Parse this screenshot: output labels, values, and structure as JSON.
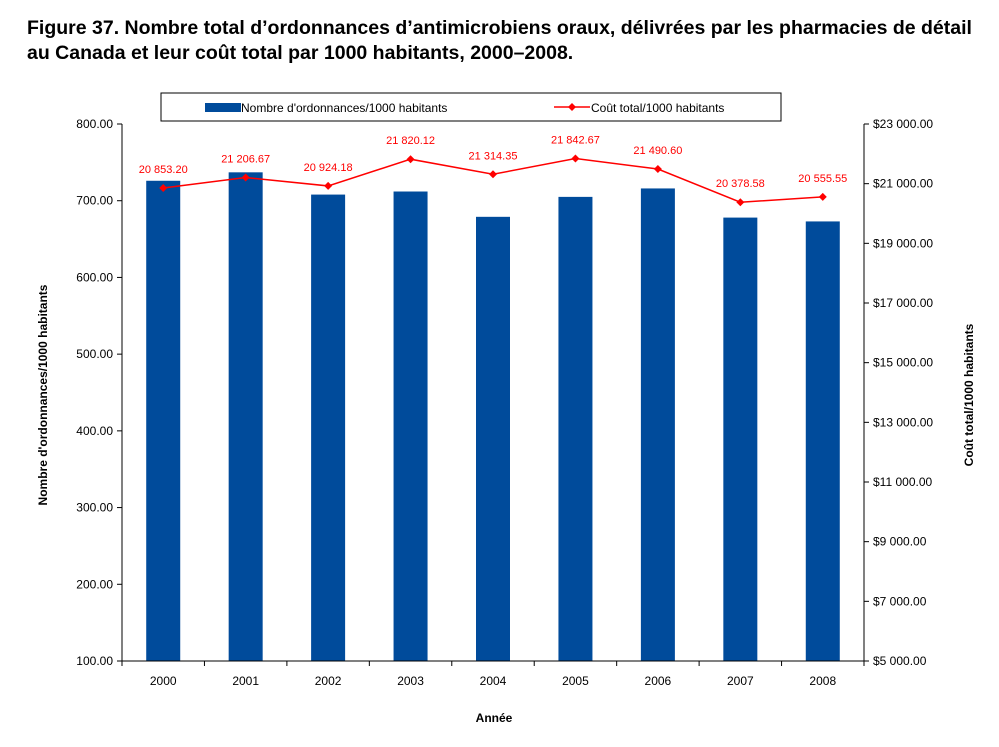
{
  "figure": {
    "title": "Figure 37. Nombre total d’ordonnances d’antimicrobiens oraux, délivrées par les pharmacies de détail au Canada et leur coût total par 1000 habitants, 2000–2008."
  },
  "chart_data": {
    "type": "bar",
    "categories": [
      "2000",
      "2001",
      "2002",
      "2003",
      "2004",
      "2005",
      "2006",
      "2007",
      "2008"
    ],
    "series": [
      {
        "name": "Nombre d'ordonnances/1000 habitants",
        "type": "bar",
        "axis": "left",
        "color": "#004b9b",
        "values": [
          726,
          737,
          708,
          712,
          679,
          705,
          716,
          678,
          673
        ]
      },
      {
        "name": "Coût total/1000 habitants",
        "type": "line",
        "axis": "right",
        "color": "#ff0000",
        "values": [
          20853.2,
          21206.67,
          20924.18,
          21820.12,
          21314.35,
          21842.67,
          21490.6,
          20378.58,
          20555.55
        ],
        "labels": [
          "20 853.20",
          "21 206.67",
          "20 924.18",
          "21 820.12",
          "21 314.35",
          "21 842.67",
          "21 490.60",
          "20 378.58",
          "20 555.55"
        ]
      }
    ],
    "xlabel": "Année",
    "ylabel": "Nombre d'ordonnances/1000 habitants",
    "y2label": "Coût total/1000 habitants",
    "ylim": [
      100,
      800
    ],
    "y2lim": [
      5000,
      23000
    ],
    "yticks": [
      100,
      200,
      300,
      400,
      500,
      600,
      700,
      800
    ],
    "ytick_labels": [
      "100.00",
      "200.00",
      "300.00",
      "400.00",
      "500.00",
      "600.00",
      "700.00",
      "800.00"
    ],
    "y2ticks": [
      5000,
      7000,
      9000,
      11000,
      13000,
      15000,
      17000,
      19000,
      21000,
      23000
    ],
    "y2tick_labels": [
      "$5 000.00",
      "$7 000.00",
      "$9 000.00",
      "$11 000.00",
      "$13 000.00",
      "$15 000.00",
      "$17 000.00",
      "$19 000.00",
      "$21 000.00",
      "$23 000.00"
    ],
    "grid": false,
    "legend_position": "top"
  }
}
